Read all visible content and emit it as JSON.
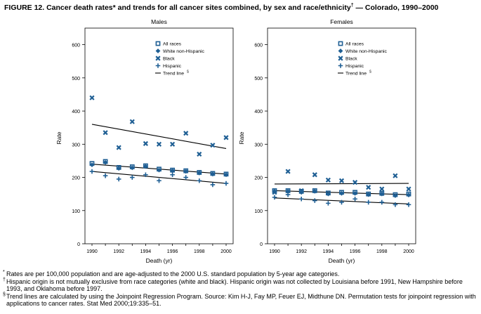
{
  "figure": {
    "title": "FIGURE 12. Cancer death rates* and trends for all cancer sites combined, by sex and race/ethnicity",
    "title_mark": "†",
    "title_tail": " — Colorado, 1990–2000"
  },
  "chart_data": [
    {
      "type": "scatter",
      "title": "Males",
      "xlabel": "Death (yr)",
      "ylabel": "Rate",
      "xlim": [
        1990,
        2000
      ],
      "ylim": [
        0,
        650
      ],
      "x_ticks": [
        "1990",
        "1992",
        "1994",
        "1996",
        "1998",
        "2000"
      ],
      "y_ticks": [
        "0",
        "100",
        "200",
        "300",
        "400",
        "500",
        "600"
      ],
      "grid": false,
      "legend": "top-right",
      "x": [
        1990,
        1991,
        1992,
        1993,
        1994,
        1995,
        1996,
        1997,
        1998,
        1999,
        2000
      ],
      "series": [
        {
          "name": "All races",
          "marker": "square",
          "values": [
            242,
            248,
            230,
            232,
            235,
            225,
            222,
            220,
            215,
            212,
            210
          ]
        },
        {
          "name": "White non-Hispanic",
          "marker": "diamond",
          "values": [
            238,
            245,
            227,
            229,
            233,
            222,
            220,
            218,
            213,
            210,
            208
          ]
        },
        {
          "name": "Black",
          "marker": "x",
          "values": [
            440,
            335,
            290,
            368,
            302,
            300,
            300,
            333,
            270,
            297,
            320
          ]
        },
        {
          "name": "Hispanic",
          "marker": "plus",
          "values": [
            218,
            205,
            195,
            200,
            208,
            190,
            208,
            200,
            190,
            178,
            182
          ]
        }
      ],
      "trend_lines": [
        {
          "name": "Trend line",
          "mark": "§",
          "x": [
            1990,
            2000
          ],
          "values": [
            240,
            210
          ]
        },
        {
          "name": "",
          "x": [
            1990,
            2000
          ],
          "values": [
            360,
            287
          ]
        },
        {
          "name": "",
          "x": [
            1990,
            2000
          ],
          "values": [
            218,
            182
          ]
        }
      ]
    },
    {
      "type": "scatter",
      "title": "Females",
      "xlabel": "Death (yr)",
      "ylabel": "Rate",
      "xlim": [
        1990,
        2000
      ],
      "ylim": [
        0,
        650
      ],
      "x_ticks": [
        "1990",
        "1992",
        "1994",
        "1996",
        "1998",
        "2000"
      ],
      "y_ticks": [
        "0",
        "100",
        "200",
        "300",
        "400",
        "500",
        "600"
      ],
      "grid": false,
      "legend": "top-right",
      "x": [
        1990,
        1991,
        1992,
        1993,
        1994,
        1995,
        1996,
        1997,
        1998,
        1999,
        2000
      ],
      "series": [
        {
          "name": "All races",
          "marker": "square",
          "values": [
            160,
            160,
            158,
            160,
            153,
            155,
            155,
            150,
            152,
            148,
            150
          ]
        },
        {
          "name": "White non-Hispanic",
          "marker": "diamond",
          "values": [
            158,
            158,
            155,
            158,
            150,
            152,
            152,
            148,
            150,
            145,
            147
          ]
        },
        {
          "name": "Black",
          "marker": "x",
          "values": [
            155,
            218,
            160,
            208,
            192,
            190,
            185,
            170,
            165,
            205,
            165
          ]
        },
        {
          "name": "Hispanic",
          "marker": "plus",
          "values": [
            140,
            148,
            135,
            130,
            122,
            125,
            135,
            125,
            125,
            118,
            118
          ]
        }
      ],
      "trend_lines": [
        {
          "name": "Trend line",
          "mark": "§",
          "x": [
            1990,
            2000
          ],
          "values": [
            160,
            148
          ]
        },
        {
          "name": "",
          "x": [
            1990,
            2000
          ],
          "values": [
            180,
            182
          ]
        },
        {
          "name": "",
          "x": [
            1990,
            2000
          ],
          "values": [
            138,
            120
          ]
        }
      ]
    }
  ],
  "footnotes": [
    {
      "mark": "*",
      "text": "Rates are per 100,000 population and are age-adjusted to the 2000 U.S. standard population by 5-year age categories."
    },
    {
      "mark": "†",
      "text": "Hispanic origin is not mutually exclusive from race categories (white and black). Hispanic origin was not collected by Louisiana before 1991, New Hampshire before 1993, and Oklahoma before 1997."
    },
    {
      "mark": "§",
      "text": "Trend lines are calculated by using the Joinpoint Regression Program. Source: Kim H-J, Fay MP, Feuer EJ, Midthune DN. Permutation tests for joinpoint regression with applications to cancer rates. Stat Med 2000;19:335–51."
    }
  ],
  "colors": {
    "marker": "#1f5f94",
    "trend": "#000000",
    "axis": "#000000"
  }
}
